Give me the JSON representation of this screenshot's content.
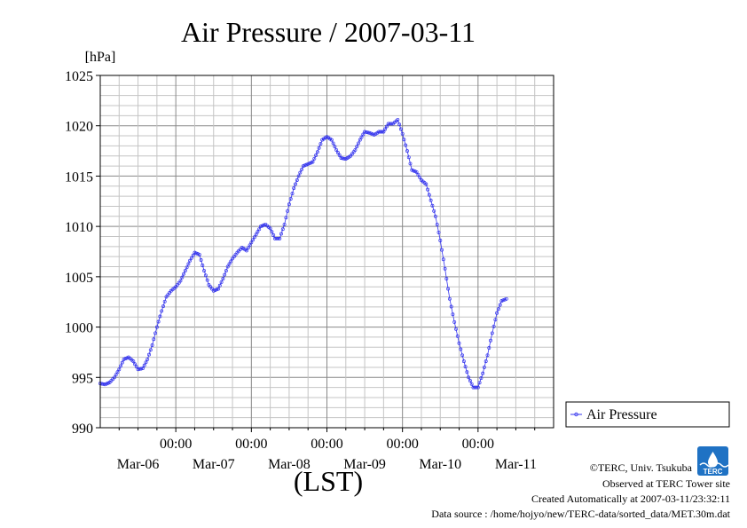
{
  "chart_data": {
    "type": "line",
    "title": "Air Pressure / 2007-03-11",
    "ylabel": "[hPa]",
    "xlabel": "(LST)",
    "ylim": [
      990,
      1025
    ],
    "yticks": [
      "990",
      "995",
      "1000",
      "1005",
      "1010",
      "1015",
      "1020",
      "1025"
    ],
    "x_time_labels": [
      "00:00",
      "00:00",
      "00:00",
      "00:00",
      "00:00"
    ],
    "x_date_labels": [
      "Mar-06",
      "Mar-07",
      "Mar-08",
      "Mar-09",
      "Mar-10",
      "Mar-11"
    ],
    "x_range_hours": [
      0,
      144
    ],
    "grid": true,
    "legend_position": "right",
    "series": [
      {
        "name": "Air Pressure",
        "color": "#3333ee",
        "points": [
          [
            0,
            994.4
          ],
          [
            1.5,
            994.3
          ],
          [
            3,
            994.5
          ],
          [
            4.5,
            995.0
          ],
          [
            6,
            995.8
          ],
          [
            7.5,
            996.8
          ],
          [
            9,
            997.0
          ],
          [
            10.5,
            996.6
          ],
          [
            12,
            995.8
          ],
          [
            13.5,
            995.9
          ],
          [
            15,
            996.8
          ],
          [
            16.5,
            998.2
          ],
          [
            18,
            1000.0
          ],
          [
            19.5,
            1001.6
          ],
          [
            21,
            1003.0
          ],
          [
            22.5,
            1003.6
          ],
          [
            24,
            1004.0
          ],
          [
            25.5,
            1004.6
          ],
          [
            27,
            1005.6
          ],
          [
            28.5,
            1006.6
          ],
          [
            30,
            1007.4
          ],
          [
            31.5,
            1007.2
          ],
          [
            33,
            1005.6
          ],
          [
            34.5,
            1004.2
          ],
          [
            36,
            1003.6
          ],
          [
            37.5,
            1003.8
          ],
          [
            39,
            1004.8
          ],
          [
            40.5,
            1006.0
          ],
          [
            42,
            1006.8
          ],
          [
            43.5,
            1007.4
          ],
          [
            45,
            1007.9
          ],
          [
            46.5,
            1007.6
          ],
          [
            48,
            1008.4
          ],
          [
            49.5,
            1009.2
          ],
          [
            51,
            1010.0
          ],
          [
            52.5,
            1010.2
          ],
          [
            54,
            1009.8
          ],
          [
            55.5,
            1008.8
          ],
          [
            57,
            1008.8
          ],
          [
            58.5,
            1010.2
          ],
          [
            60,
            1012.2
          ],
          [
            61.5,
            1013.8
          ],
          [
            63,
            1015.0
          ],
          [
            64.5,
            1016.0
          ],
          [
            66,
            1016.2
          ],
          [
            67.5,
            1016.4
          ],
          [
            69,
            1017.4
          ],
          [
            70.5,
            1018.6
          ],
          [
            72,
            1018.9
          ],
          [
            73.5,
            1018.6
          ],
          [
            75,
            1017.6
          ],
          [
            76.5,
            1016.8
          ],
          [
            78,
            1016.7
          ],
          [
            79.5,
            1017.0
          ],
          [
            81,
            1017.6
          ],
          [
            82.5,
            1018.6
          ],
          [
            84,
            1019.4
          ],
          [
            85.5,
            1019.3
          ],
          [
            87,
            1019.1
          ],
          [
            88.5,
            1019.4
          ],
          [
            90,
            1019.4
          ],
          [
            91.5,
            1020.2
          ],
          [
            93,
            1020.2
          ],
          [
            94.5,
            1020.6
          ],
          [
            96,
            1019.2
          ],
          [
            97.5,
            1017.5
          ],
          [
            99,
            1015.6
          ],
          [
            100.5,
            1015.4
          ],
          [
            102,
            1014.6
          ],
          [
            103.5,
            1014.2
          ],
          [
            105,
            1012.6
          ],
          [
            106.5,
            1011.0
          ],
          [
            108,
            1008.6
          ],
          [
            109.5,
            1005.8
          ],
          [
            111,
            1002.8
          ],
          [
            112.5,
            1000.5
          ],
          [
            114,
            998.4
          ],
          [
            115.5,
            996.6
          ],
          [
            117,
            995.0
          ],
          [
            118.5,
            994.0
          ],
          [
            120,
            994.0
          ],
          [
            121.5,
            995.4
          ],
          [
            123,
            997.2
          ],
          [
            124.5,
            999.4
          ],
          [
            126,
            1001.4
          ],
          [
            127.5,
            1002.6
          ],
          [
            129,
            1002.8
          ]
        ]
      }
    ]
  },
  "legend": {
    "label": "Air Pressure"
  },
  "logo": {
    "text": "TERC"
  },
  "footer": {
    "copyright": "©TERC, Univ. Tsukuba",
    "observed": "Observed at TERC Tower site",
    "created": "Created Automatically at 2007-03-11/23:32:11",
    "source": "Data source : /home/hojyo/new/TERC-data/sorted_data/MET.30m.dat"
  }
}
